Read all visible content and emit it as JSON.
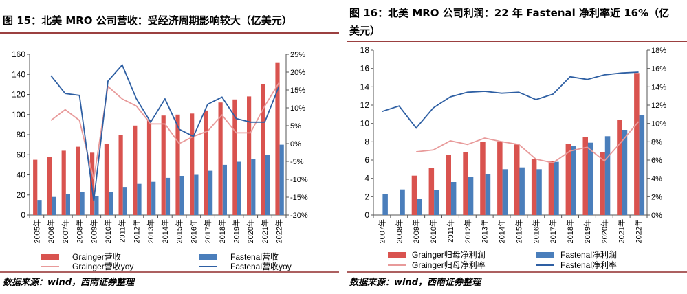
{
  "charts": [
    {
      "title": "图 15：北美 MRO 公司营收：受经济周期影响较大（亿美元）",
      "source": "数据来源：wind，西南证券整理"
    },
    {
      "title": "图 16：北美 MRO 公司利润：22 年 Fastenal 净利率近 16%（亿美元）",
      "source": "数据来源：wind，西南证券整理"
    }
  ],
  "chart_data": [
    {
      "type": "bar",
      "title": "图 15：北美 MRO 公司营收：受经济周期影响较大（亿美元）",
      "categories": [
        "2005年",
        "2006年",
        "2007年",
        "2008年",
        "2009年",
        "2010年",
        "2011年",
        "2012年",
        "2013年",
        "2014年",
        "2015年",
        "2016年",
        "2017年",
        "2018年",
        "2019年",
        "2020年",
        "2021年",
        "2022年"
      ],
      "ylim": [
        0,
        160
      ],
      "yticks": [
        "0",
        "20",
        "40",
        "60",
        "80",
        "100",
        "120",
        "140",
        "160"
      ],
      "y2lim": [
        -20,
        25
      ],
      "y2ticks": [
        "-20%",
        "-15%",
        "-10%",
        "-5%",
        "0%",
        "5%",
        "10%",
        "15%",
        "20%",
        "25%"
      ],
      "series": [
        {
          "name": "Grainger营收",
          "kind": "bar",
          "axis": "left",
          "color": "#d9534f",
          "values": [
            55,
            58,
            64,
            68,
            62,
            71,
            80,
            89,
            95,
            99,
            100,
            101,
            104,
            112,
            115,
            118,
            130,
            152
          ]
        },
        {
          "name": "Fastenal营收",
          "kind": "bar",
          "axis": "left",
          "color": "#4a7ebb",
          "values": [
            15,
            18,
            21,
            23,
            19,
            23,
            28,
            31,
            33,
            37,
            39,
            40,
            44,
            50,
            53,
            56,
            60,
            70
          ]
        },
        {
          "name": "Grainger营收yoy",
          "kind": "line",
          "axis": "right",
          "color": "#e89a9a",
          "values": [
            null,
            6.5,
            9.5,
            6.5,
            -10,
            16,
            12.5,
            10.5,
            5.5,
            5.5,
            0,
            2,
            3.5,
            8,
            3,
            3,
            10.5,
            17
          ]
        },
        {
          "name": "Fastenal营收yoy",
          "kind": "line",
          "axis": "right",
          "color": "#2e5fa3",
          "values": [
            null,
            19,
            14,
            13.5,
            -16,
            17.5,
            22,
            12.5,
            6,
            12.5,
            4,
            2,
            11,
            13,
            7,
            6,
            6,
            16
          ]
        }
      ]
    },
    {
      "type": "bar",
      "title": "图 16：北美 MRO 公司利润：22 年 Fastenal 净利率近 16%（亿美元）",
      "categories": [
        "2007年",
        "2008年",
        "2009年",
        "2010年",
        "2011年",
        "2012年",
        "2013年",
        "2014年",
        "2015年",
        "2016年",
        "2017年",
        "2018年",
        "2019年",
        "2020年",
        "2021年",
        "2022年"
      ],
      "ylim": [
        0,
        18
      ],
      "yticks": [
        "0",
        "2",
        "4",
        "6",
        "8",
        "10",
        "12",
        "14",
        "16",
        "18"
      ],
      "y2lim": [
        0,
        18
      ],
      "y2ticks": [
        "0%",
        "2%",
        "4%",
        "6%",
        "8%",
        "10%",
        "12%",
        "14%",
        "16%",
        "18%"
      ],
      "series": [
        {
          "name": "Grainger归母净利润",
          "kind": "bar",
          "axis": "left",
          "color": "#d9534f",
          "values": [
            null,
            null,
            4.3,
            5.1,
            6.6,
            6.9,
            8.0,
            8.0,
            7.7,
            6.1,
            5.9,
            7.8,
            8.5,
            6.9,
            10.4,
            15.5
          ]
        },
        {
          "name": "Fastenal净利润",
          "kind": "bar",
          "axis": "left",
          "color": "#4a7ebb",
          "values": [
            2.3,
            2.8,
            1.8,
            2.7,
            3.6,
            4.2,
            4.5,
            5.0,
            5.2,
            5.0,
            5.8,
            7.5,
            7.9,
            8.6,
            9.3,
            10.9
          ]
        },
        {
          "name": "Grainger归母净利率",
          "kind": "line",
          "axis": "right",
          "color": "#e89a9a",
          "values": [
            null,
            null,
            6.9,
            7.1,
            8.1,
            7.7,
            8.4,
            8.0,
            7.7,
            6.1,
            5.7,
            7.0,
            7.4,
            5.9,
            8.0,
            10.2
          ]
        },
        {
          "name": "Fastenal净利率",
          "kind": "line",
          "axis": "right",
          "color": "#2e5fa3",
          "values": [
            11.3,
            11.9,
            9.5,
            11.7,
            12.9,
            13.4,
            13.5,
            13.3,
            13.4,
            12.6,
            13.2,
            15.1,
            14.8,
            15.3,
            15.5,
            15.6
          ]
        }
      ]
    }
  ]
}
